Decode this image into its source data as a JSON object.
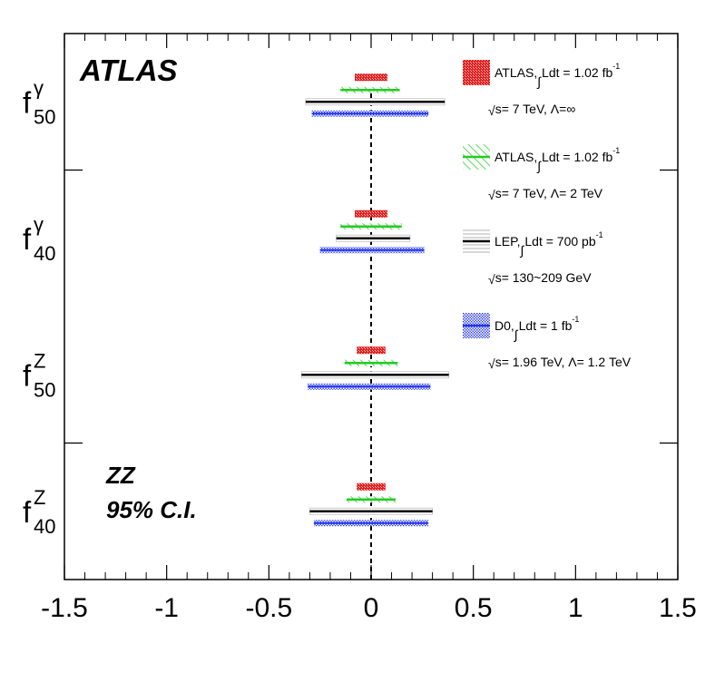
{
  "chart_data": {
    "type": "interval",
    "title": "",
    "experiment_label": "ATLAS",
    "annotations": [
      "ZZ",
      "95% C.I."
    ],
    "xlim": [
      -1.5,
      1.5
    ],
    "x_ticks": [
      "-1.5",
      "-1",
      "-0.5",
      "0",
      "0.5",
      "1",
      "1.5"
    ],
    "reference_line_x": 0,
    "parameters": [
      {
        "id": "f50g",
        "base": "f",
        "sup": "γ",
        "sub": "50"
      },
      {
        "id": "f40g",
        "base": "f",
        "sup": "γ",
        "sub": "40"
      },
      {
        "id": "f50z",
        "base": "f",
        "sup": "Z",
        "sub": "50"
      },
      {
        "id": "f40z",
        "base": "f",
        "sup": "Z",
        "sub": "40"
      }
    ],
    "series": [
      {
        "id": "atlas_inf",
        "color": "#dd2222",
        "style": "box",
        "legend_lines": [
          {
            "parts": [
              {
                "t": "ATLAS, "
              },
              {
                "t": "∫",
                "integral": true
              },
              {
                "t": "Ldt = 1.02 fb"
              },
              {
                "t": "-1",
                "sup": true
              }
            ]
          },
          {
            "parts": [
              {
                "t": "√",
                "sqrt": true
              },
              {
                "t": "s= 7 TeV,  Λ=∞"
              }
            ]
          }
        ],
        "intervals": [
          [
            -0.08,
            0.08
          ],
          [
            -0.08,
            0.08
          ],
          [
            -0.07,
            0.07
          ],
          [
            -0.07,
            0.07
          ]
        ]
      },
      {
        "id": "atlas_2tev",
        "color": "#22cc22",
        "style": "hatch",
        "legend_lines": [
          {
            "parts": [
              {
                "t": "ATLAS, "
              },
              {
                "t": "∫",
                "integral": true
              },
              {
                "t": "Ldt = 1.02 fb"
              },
              {
                "t": "-1",
                "sup": true
              }
            ]
          },
          {
            "parts": [
              {
                "t": "√",
                "sqrt": true
              },
              {
                "t": "s= 7 TeV,  Λ= 2 TeV"
              }
            ]
          }
        ],
        "intervals": [
          [
            -0.15,
            0.14
          ],
          [
            -0.15,
            0.15
          ],
          [
            -0.13,
            0.13
          ],
          [
            -0.12,
            0.12
          ]
        ]
      },
      {
        "id": "lep",
        "color": "#000000",
        "style": "line",
        "legend_lines": [
          {
            "parts": [
              {
                "t": "LEP, "
              },
              {
                "t": "∫",
                "integral": true
              },
              {
                "t": "Ldt = 700 pb"
              },
              {
                "t": "-1",
                "sup": true
              }
            ]
          },
          {
            "parts": [
              {
                "t": "√",
                "sqrt": true
              },
              {
                "t": "s= 130~209 GeV"
              }
            ]
          }
        ],
        "intervals": [
          [
            -0.32,
            0.36
          ],
          [
            -0.17,
            0.19
          ],
          [
            -0.34,
            0.38
          ],
          [
            -0.3,
            0.3
          ]
        ]
      },
      {
        "id": "d0",
        "color": "#2233ee",
        "style": "dots",
        "legend_lines": [
          {
            "parts": [
              {
                "t": "D0, "
              },
              {
                "t": "∫",
                "integral": true
              },
              {
                "t": "Ldt = 1 fb"
              },
              {
                "t": "-1",
                "sup": true
              }
            ]
          },
          {
            "parts": [
              {
                "t": "√",
                "sqrt": true
              },
              {
                "t": "s= 1.96 TeV, Λ= 1.2 TeV"
              }
            ]
          }
        ],
        "intervals": [
          [
            -0.29,
            0.28
          ],
          [
            -0.25,
            0.26
          ],
          [
            -0.31,
            0.29
          ],
          [
            -0.28,
            0.28
          ]
        ]
      }
    ],
    "grid": false,
    "legend_position": "top-right"
  }
}
